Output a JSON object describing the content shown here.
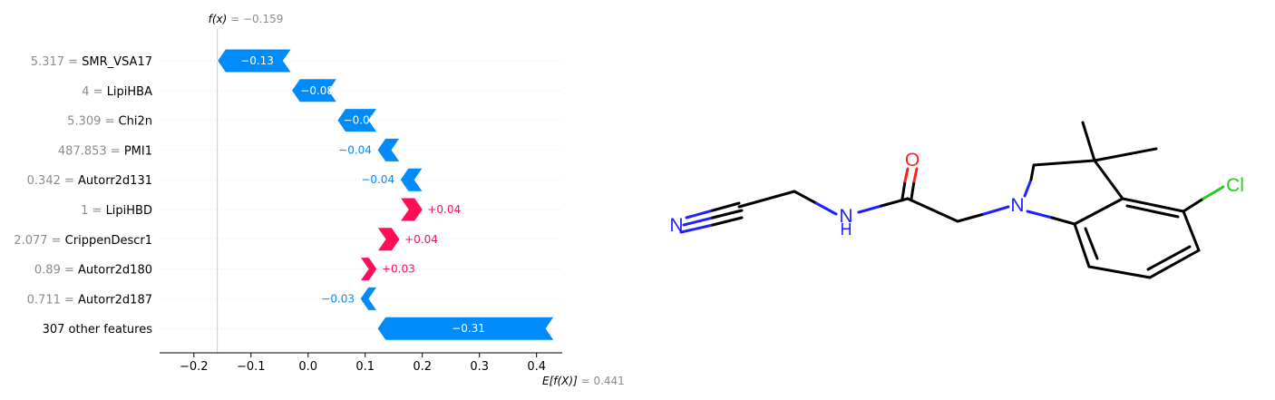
{
  "chart_data": {
    "type": "bar",
    "subtype": "shap-waterfall",
    "title": "",
    "xlabel": "",
    "ylabel": "",
    "xlim": [
      -0.26,
      0.445
    ],
    "xticks": [
      -0.2,
      -0.1,
      0.0,
      0.1,
      0.2,
      0.3,
      0.4
    ],
    "xtick_labels": [
      "−0.2",
      "−0.1",
      "0.0",
      "0.1",
      "0.2",
      "0.3",
      "0.4"
    ],
    "base_value": 0.441,
    "output_value": -0.159,
    "fx_label": "f(x)",
    "fx_value_text": "= −0.159",
    "efx_label": "E[f(X)]",
    "efx_value_text": "= 0.441",
    "colors": {
      "positive": "#ff0d57",
      "negative": "#008bfb",
      "grid": "#e6e6e6"
    },
    "features": [
      {
        "value_text": "5.317 =",
        "name": "SMR_VSA17",
        "contribution": -0.13,
        "label": "−0.13",
        "label_inside": true
      },
      {
        "value_text": "4 =",
        "name": "LipiHBA",
        "contribution": -0.08,
        "label": "−0.08",
        "label_inside": true
      },
      {
        "value_text": "5.309 =",
        "name": "Chi2n",
        "contribution": -0.07,
        "label": "−0.07",
        "label_inside": true
      },
      {
        "value_text": "487.853 =",
        "name": "PMI1",
        "contribution": -0.04,
        "label": "−0.04",
        "label_inside": false
      },
      {
        "value_text": "0.342 =",
        "name": "Autorr2d131",
        "contribution": -0.04,
        "label": "−0.04",
        "label_inside": false
      },
      {
        "value_text": "1 =",
        "name": "LipiHBD",
        "contribution": 0.04,
        "label": "+0.04",
        "label_inside": false
      },
      {
        "value_text": "2.077 =",
        "name": "CrippenDescr1",
        "contribution": 0.04,
        "label": "+0.04",
        "label_inside": false
      },
      {
        "value_text": "0.89 =",
        "name": "Autorr2d180",
        "contribution": 0.03,
        "label": "+0.03",
        "label_inside": false
      },
      {
        "value_text": "0.711 =",
        "name": "Autorr2d187",
        "contribution": -0.03,
        "label": "−0.03",
        "label_inside": false
      },
      {
        "value_text": "",
        "name": "307 other features",
        "contribution": -0.31,
        "label": "−0.31",
        "label_inside": true
      }
    ]
  },
  "molecule": {
    "atoms": [
      "O",
      "N",
      "H",
      "N",
      "Cl",
      "N"
    ]
  }
}
